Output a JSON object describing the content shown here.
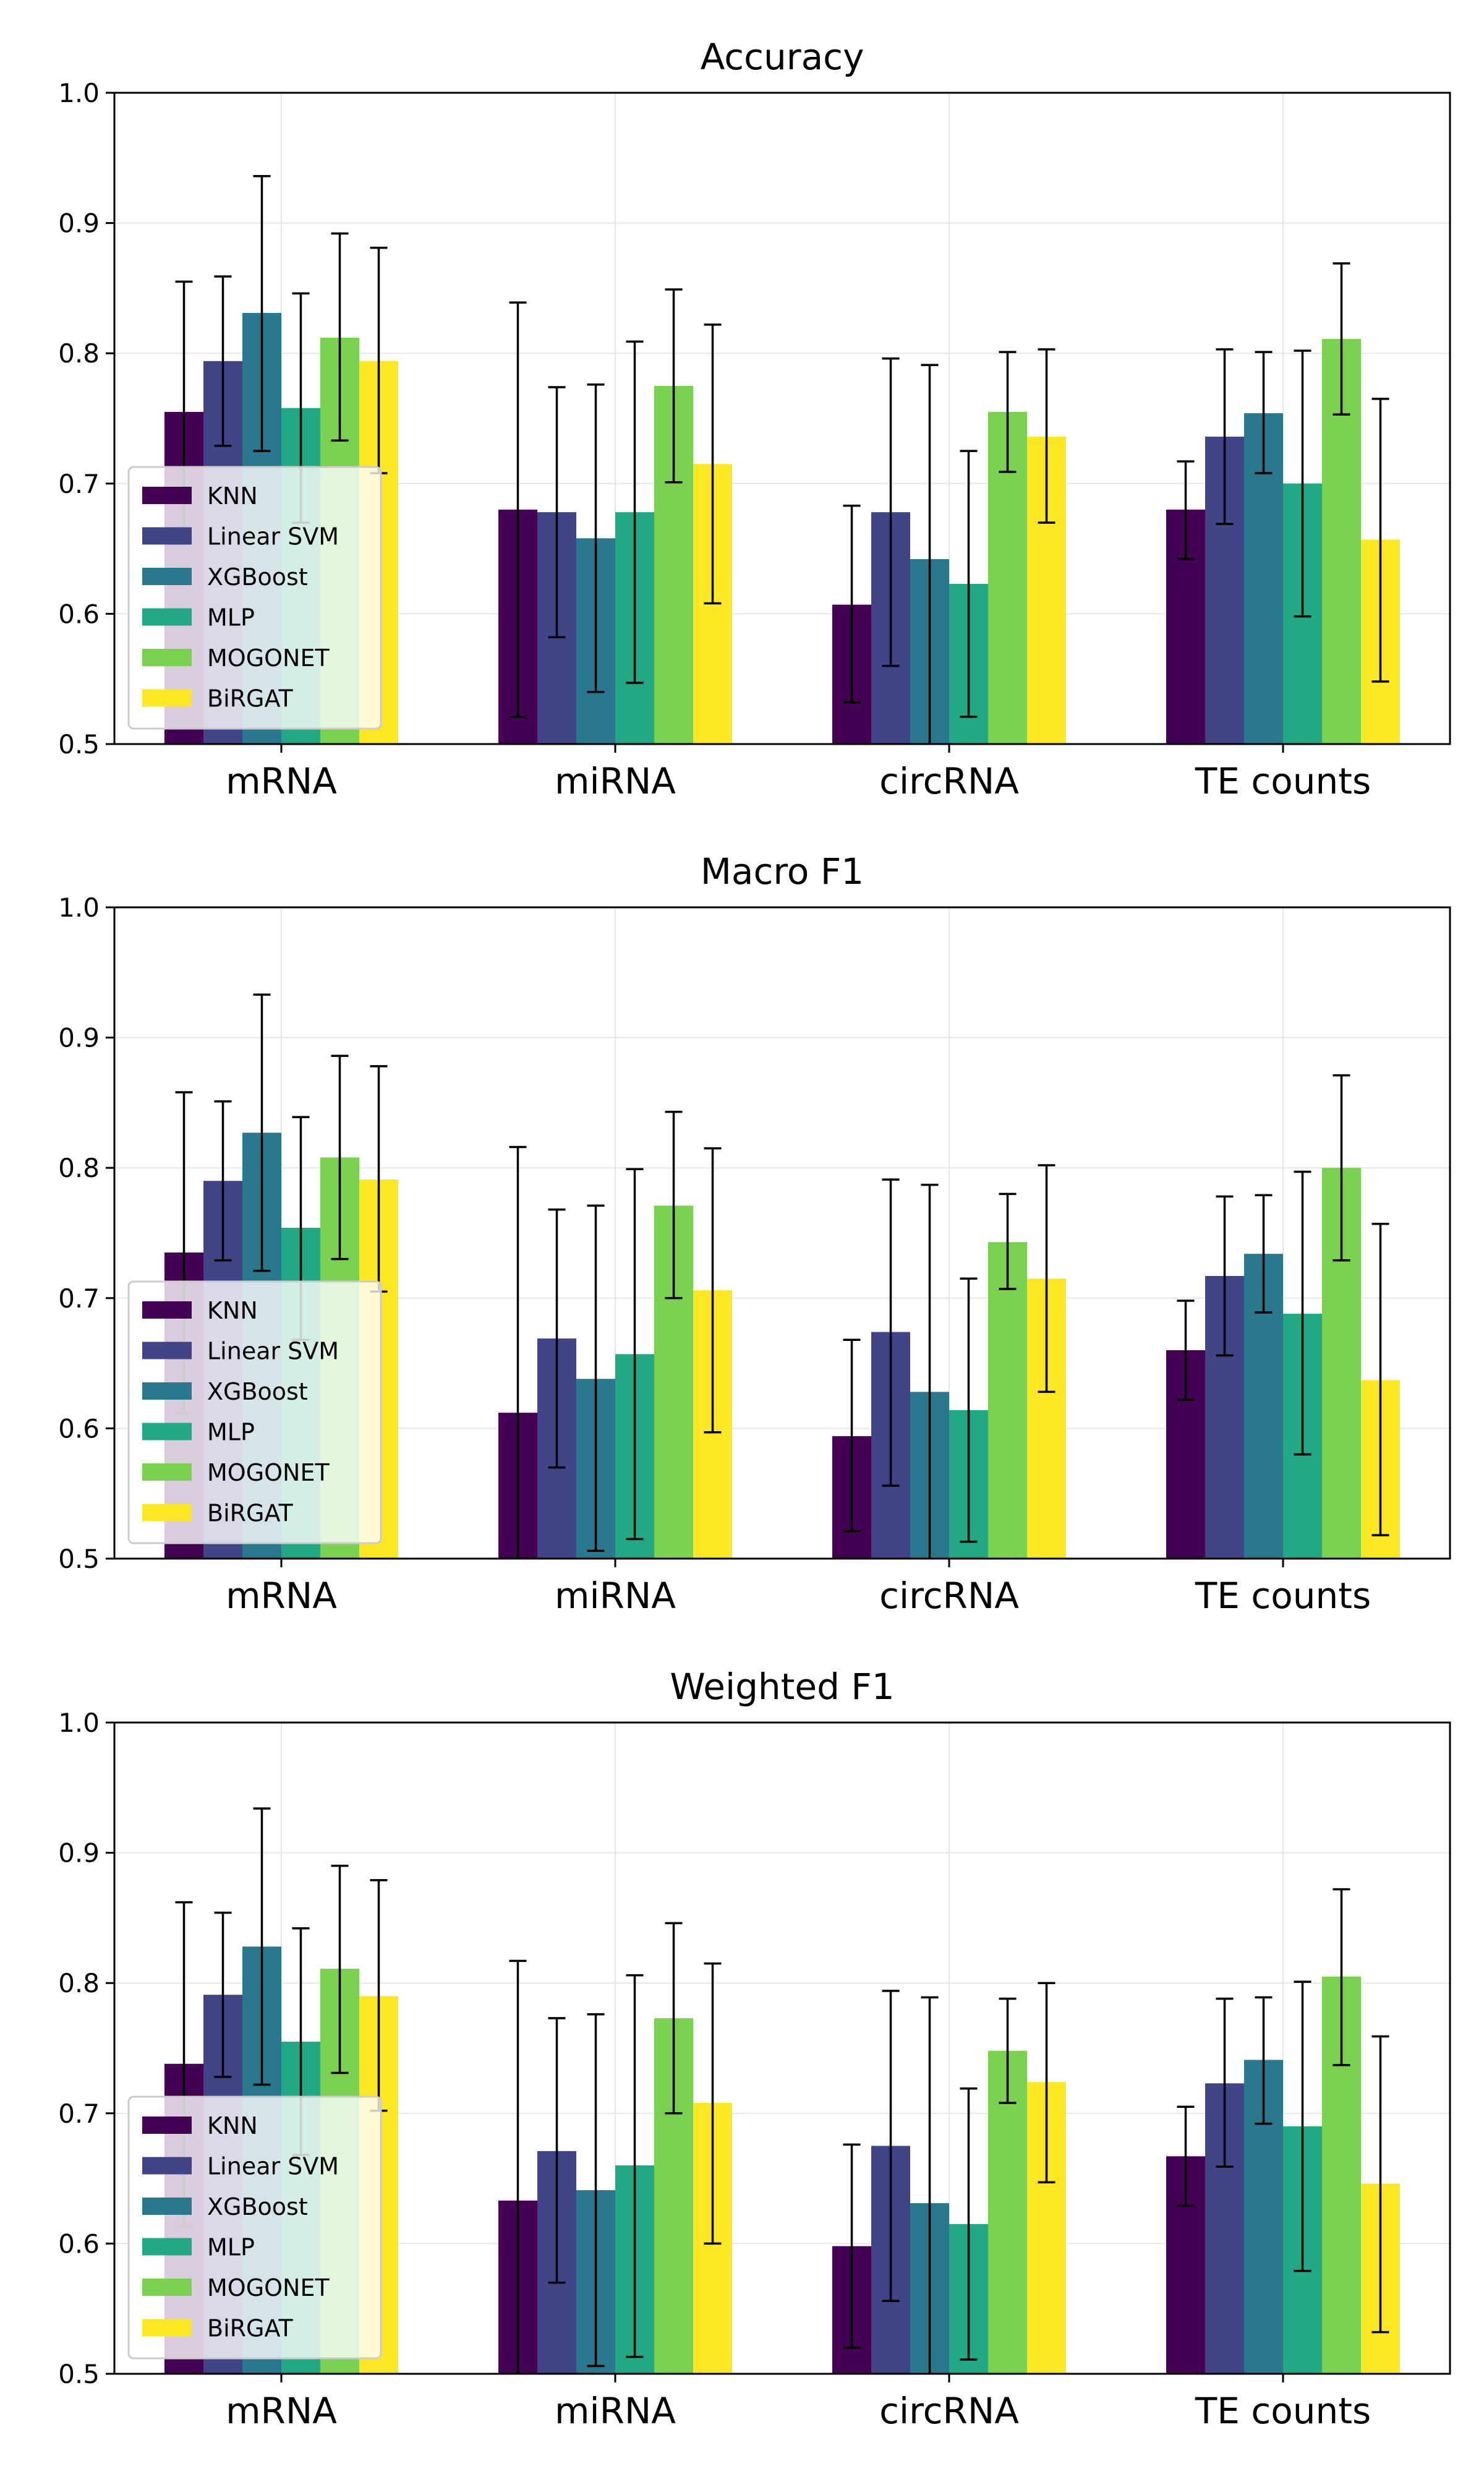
{
  "chart_data": [
    {
      "type": "bar",
      "title": "Accuracy",
      "ylim": [
        0.5,
        1.0
      ],
      "yticks": [
        "0.5",
        "0.6",
        "0.7",
        "0.8",
        "0.9",
        "1.0"
      ],
      "categories": [
        "mRNA",
        "miRNA",
        "circRNA",
        "TE counts"
      ],
      "grid": true,
      "legend_position": "lower-left",
      "error_bars": true,
      "series": [
        {
          "name": "KNN",
          "color": "#440154",
          "values": [
            0.755,
            0.68,
            0.607,
            0.68
          ],
          "err_low": [
            0.655,
            0.521,
            0.532,
            0.642
          ],
          "err_high": [
            0.855,
            0.839,
            0.683,
            0.717
          ]
        },
        {
          "name": "Linear SVM",
          "color": "#414487",
          "values": [
            0.794,
            0.678,
            0.678,
            0.736
          ],
          "err_low": [
            0.729,
            0.582,
            0.56,
            0.669
          ],
          "err_high": [
            0.859,
            0.774,
            0.796,
            0.803
          ]
        },
        {
          "name": "XGBoost",
          "color": "#2a788e",
          "values": [
            0.831,
            0.658,
            0.642,
            0.754
          ],
          "err_low": [
            0.725,
            0.54,
            0.492,
            0.708
          ],
          "err_high": [
            0.936,
            0.776,
            0.791,
            0.801
          ]
        },
        {
          "name": "MLP",
          "color": "#22a884",
          "values": [
            0.758,
            0.678,
            0.623,
            0.7
          ],
          "err_low": [
            0.67,
            0.547,
            0.521,
            0.598
          ],
          "err_high": [
            0.846,
            0.809,
            0.725,
            0.802
          ]
        },
        {
          "name": "MOGONET",
          "color": "#7ad151",
          "values": [
            0.812,
            0.775,
            0.755,
            0.811
          ],
          "err_low": [
            0.733,
            0.701,
            0.709,
            0.753
          ],
          "err_high": [
            0.892,
            0.849,
            0.801,
            0.869
          ]
        },
        {
          "name": "BiRGAT",
          "color": "#fde725",
          "values": [
            0.794,
            0.715,
            0.736,
            0.657
          ],
          "err_low": [
            0.708,
            0.608,
            0.67,
            0.548
          ],
          "err_high": [
            0.881,
            0.822,
            0.803,
            0.765
          ]
        }
      ]
    },
    {
      "type": "bar",
      "title": "Macro F1",
      "ylim": [
        0.5,
        1.0
      ],
      "yticks": [
        "0.5",
        "0.6",
        "0.7",
        "0.8",
        "0.9",
        "1.0"
      ],
      "categories": [
        "mRNA",
        "miRNA",
        "circRNA",
        "TE counts"
      ],
      "grid": true,
      "legend_position": "lower-left",
      "error_bars": true,
      "series": [
        {
          "name": "KNN",
          "color": "#440154",
          "values": [
            0.735,
            0.612,
            0.594,
            0.66
          ],
          "err_low": [
            0.612,
            0.408,
            0.521,
            0.622
          ],
          "err_high": [
            0.858,
            0.816,
            0.668,
            0.698
          ]
        },
        {
          "name": "Linear SVM",
          "color": "#414487",
          "values": [
            0.79,
            0.669,
            0.674,
            0.717
          ],
          "err_low": [
            0.729,
            0.57,
            0.556,
            0.656
          ],
          "err_high": [
            0.851,
            0.768,
            0.791,
            0.778
          ]
        },
        {
          "name": "XGBoost",
          "color": "#2a788e",
          "values": [
            0.827,
            0.638,
            0.628,
            0.734
          ],
          "err_low": [
            0.721,
            0.506,
            0.469,
            0.689
          ],
          "err_high": [
            0.933,
            0.771,
            0.787,
            0.779
          ]
        },
        {
          "name": "MLP",
          "color": "#22a884",
          "values": [
            0.754,
            0.657,
            0.614,
            0.688
          ],
          "err_low": [
            0.668,
            0.515,
            0.513,
            0.58
          ],
          "err_high": [
            0.839,
            0.799,
            0.715,
            0.797
          ]
        },
        {
          "name": "MOGONET",
          "color": "#7ad151",
          "values": [
            0.808,
            0.771,
            0.743,
            0.8
          ],
          "err_low": [
            0.73,
            0.7,
            0.707,
            0.729
          ],
          "err_high": [
            0.886,
            0.843,
            0.78,
            0.871
          ]
        },
        {
          "name": "BiRGAT",
          "color": "#fde725",
          "values": [
            0.791,
            0.706,
            0.715,
            0.637
          ],
          "err_low": [
            0.705,
            0.597,
            0.628,
            0.518
          ],
          "err_high": [
            0.878,
            0.815,
            0.802,
            0.757
          ]
        }
      ]
    },
    {
      "type": "bar",
      "title": "Weighted F1",
      "ylim": [
        0.5,
        1.0
      ],
      "yticks": [
        "0.5",
        "0.6",
        "0.7",
        "0.8",
        "0.9",
        "1.0"
      ],
      "categories": [
        "mRNA",
        "miRNA",
        "circRNA",
        "TE counts"
      ],
      "grid": true,
      "legend_position": "lower-left",
      "error_bars": true,
      "series": [
        {
          "name": "KNN",
          "color": "#440154",
          "values": [
            0.738,
            0.633,
            0.598,
            0.667
          ],
          "err_low": [
            0.613,
            0.449,
            0.52,
            0.629
          ],
          "err_high": [
            0.862,
            0.817,
            0.676,
            0.705
          ]
        },
        {
          "name": "Linear SVM",
          "color": "#414487",
          "values": [
            0.791,
            0.671,
            0.675,
            0.723
          ],
          "err_low": [
            0.728,
            0.57,
            0.556,
            0.659
          ],
          "err_high": [
            0.854,
            0.773,
            0.794,
            0.788
          ]
        },
        {
          "name": "XGBoost",
          "color": "#2a788e",
          "values": [
            0.828,
            0.641,
            0.631,
            0.741
          ],
          "err_low": [
            0.722,
            0.506,
            0.472,
            0.692
          ],
          "err_high": [
            0.934,
            0.776,
            0.789,
            0.789
          ]
        },
        {
          "name": "MLP",
          "color": "#22a884",
          "values": [
            0.755,
            0.66,
            0.615,
            0.69
          ],
          "err_low": [
            0.668,
            0.513,
            0.511,
            0.579
          ],
          "err_high": [
            0.842,
            0.806,
            0.719,
            0.801
          ]
        },
        {
          "name": "MOGONET",
          "color": "#7ad151",
          "values": [
            0.811,
            0.773,
            0.748,
            0.805
          ],
          "err_low": [
            0.731,
            0.7,
            0.708,
            0.737
          ],
          "err_high": [
            0.89,
            0.846,
            0.788,
            0.872
          ]
        },
        {
          "name": "BiRGAT",
          "color": "#fde725",
          "values": [
            0.79,
            0.708,
            0.724,
            0.646
          ],
          "err_low": [
            0.702,
            0.6,
            0.647,
            0.532
          ],
          "err_high": [
            0.879,
            0.815,
            0.8,
            0.759
          ]
        }
      ]
    }
  ]
}
